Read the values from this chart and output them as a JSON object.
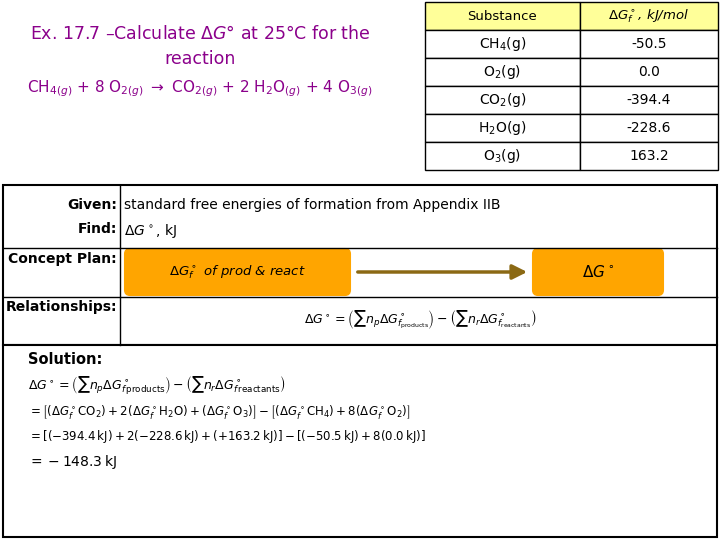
{
  "title_color": "#8B008B",
  "table_header_bg": "#FFFF99",
  "table_substances": [
    "CH$_4$(g)",
    "O$_2$(g)",
    "CO$_2$(g)",
    "H$_2$O(g)",
    "O$_3$(g)"
  ],
  "table_values": [
    "-50.5",
    "0.0",
    "-394.4",
    "-228.6",
    "163.2"
  ],
  "orange_color": "#FFA500",
  "bg_color": "#FFFFFF",
  "border_color": "#000000",
  "given_text": "standard free energies of formation from Appendix IIB",
  "find_text": "$\\Delta G^\\circ$, kJ"
}
